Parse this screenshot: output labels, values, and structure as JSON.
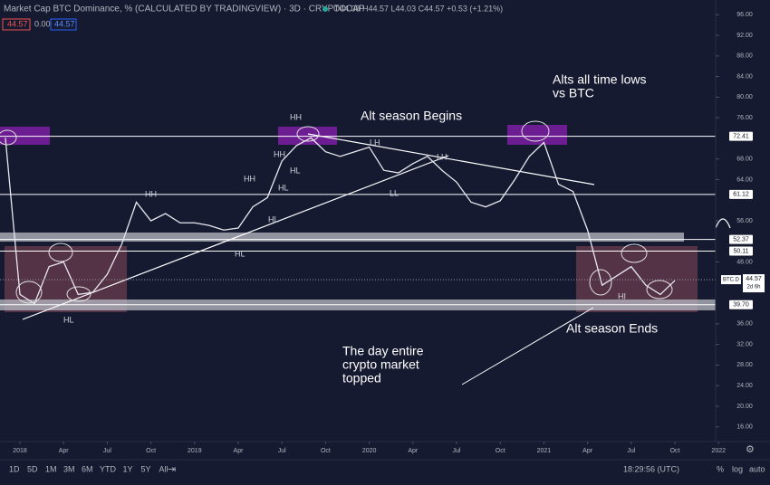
{
  "header": {
    "title": "Market Cap BTC Dominance, % (CALCULATED BY TRADINGVIEW) · 3D · CRYPTOCAP",
    "ohlc": "O44.08 H44.57 L44.03 C44.57 +0.53 (+1.21%)",
    "boxes": [
      "44.57",
      "0.00",
      "44.57"
    ]
  },
  "chart_data": {
    "type": "line",
    "x": [
      -1,
      0,
      1,
      2,
      3,
      4,
      5,
      6,
      7,
      8,
      9,
      10,
      11,
      12,
      13,
      14,
      15,
      16,
      17,
      18,
      19,
      20,
      21,
      22,
      23,
      24,
      25,
      26,
      27,
      28,
      29,
      30,
      31,
      32,
      33,
      34,
      35,
      36,
      37,
      38,
      39,
      40,
      41,
      42,
      43,
      44,
      45
    ],
    "series": [
      {
        "name": "BTC.D",
        "color": "#e8e8ee",
        "values": [
          72.1,
          41.7,
          39.9,
          47.1,
          48.0,
          41.7,
          42.1,
          45.6,
          51.5,
          59.6,
          56.0,
          57.4,
          55.6,
          55.6,
          55.1,
          54.2,
          54.6,
          58.7,
          60.5,
          67.6,
          70.6,
          72.1,
          69.4,
          68.5,
          69.4,
          70.3,
          65.8,
          65.3,
          67.1,
          68.5,
          65.8,
          63.5,
          59.6,
          58.7,
          59.9,
          64.0,
          68.5,
          71.2,
          63.1,
          61.7,
          54.2,
          43.5,
          45.3,
          47.1,
          43.5,
          41.7,
          44.4
        ]
      }
    ],
    "xlim": [
      -1.37,
      47.8
    ],
    "ylim": [
      98.86,
      13.14
    ],
    "xticks": [
      {
        "value": 0,
        "label": "2018"
      },
      {
        "value": 3,
        "label": "Apr"
      },
      {
        "value": 6,
        "label": "Jul"
      },
      {
        "value": 9,
        "label": "Oct"
      },
      {
        "value": 12,
        "label": "2019"
      },
      {
        "value": 15,
        "label": "Apr"
      },
      {
        "value": 18,
        "label": "Jul"
      },
      {
        "value": 21,
        "label": "Oct"
      },
      {
        "value": 24,
        "label": "2020"
      },
      {
        "value": 27,
        "label": "Apr"
      },
      {
        "value": 30,
        "label": "Jul"
      },
      {
        "value": 33,
        "label": "Oct"
      },
      {
        "value": 36,
        "label": "2021"
      },
      {
        "value": 39,
        "label": "Apr"
      },
      {
        "value": 42,
        "label": "Jul"
      },
      {
        "value": 45,
        "label": "Oct"
      },
      {
        "value": 48,
        "label": "2022"
      }
    ],
    "yticks": [
      {
        "value": 96,
        "label": "96.00"
      },
      {
        "value": 92,
        "label": "92.00"
      },
      {
        "value": 88,
        "label": "88.00"
      },
      {
        "value": 84,
        "label": "84.00"
      },
      {
        "value": 80,
        "label": "80.00"
      },
      {
        "value": 76,
        "label": "76.00"
      },
      {
        "value": 68,
        "label": "68.00"
      },
      {
        "value": 64,
        "label": "64.00"
      },
      {
        "value": 56,
        "label": "56.00"
      },
      {
        "value": 48,
        "label": "48.00"
      },
      {
        "value": 36,
        "label": "36.00"
      },
      {
        "value": 32,
        "label": "32.00"
      },
      {
        "value": 28,
        "label": "28.00"
      },
      {
        "value": 24,
        "label": "24.00"
      },
      {
        "value": 20,
        "label": "20.00"
      },
      {
        "value": 16,
        "label": "16.00"
      }
    ],
    "levels": [
      72.41,
      61.12,
      52.37,
      50.11,
      {
        "value": 39.7,
        "label": "39.70"
      }
    ],
    "last_price": {
      "name": "BTC.D",
      "value": 44.57,
      "countdown": "2d 6h"
    }
  },
  "annotations": {
    "alt_begins": "Alt season Begins",
    "alt_lows": [
      "Alts all time lows",
      "vs BTC"
    ],
    "alt_ends": "Alt season Ends",
    "topped": [
      "The day entire",
      "crypto market",
      "topped"
    ],
    "swings": [
      "HH",
      "HH",
      "HH",
      "HH",
      "HL",
      "HL",
      "HL",
      "HL",
      "HL",
      "LH",
      "LH",
      "LL",
      "HI"
    ]
  },
  "toolbar": {
    "ranges": [
      "1D",
      "5D",
      "1M",
      "3M",
      "6M",
      "YTD",
      "1Y",
      "5Y",
      "All"
    ],
    "clock": "18:29:56 (UTC)",
    "options": [
      "%",
      "log",
      "auto"
    ]
  }
}
